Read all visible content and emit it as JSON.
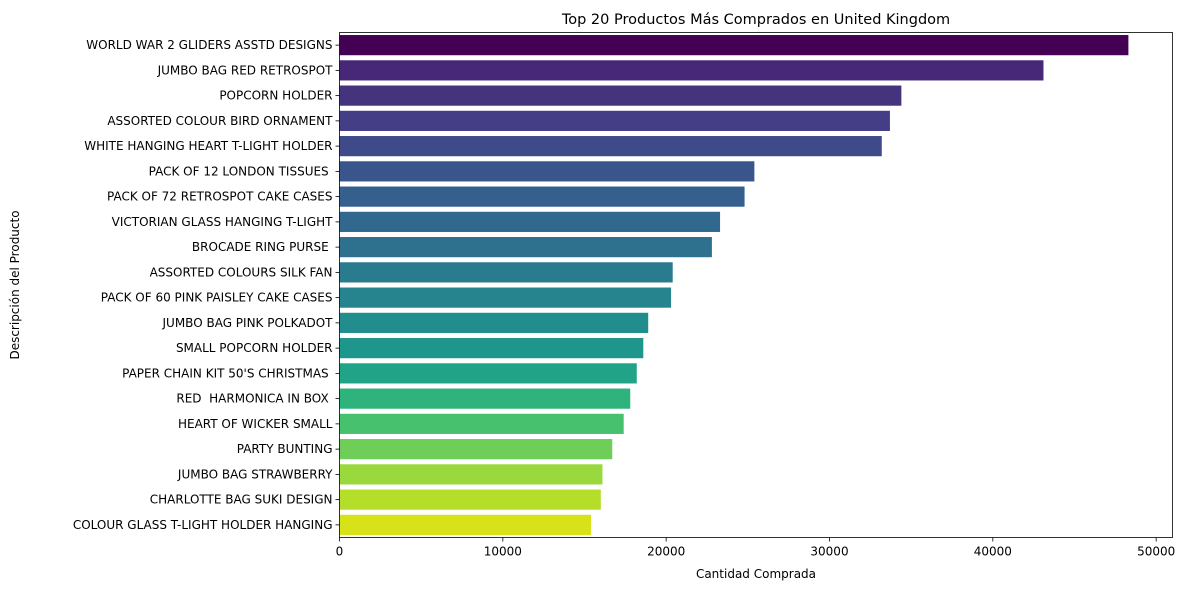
{
  "chart_data": {
    "type": "bar",
    "orientation": "horizontal",
    "title": "Top 20 Productos Más Comprados en United Kingdom",
    "xlabel": "Cantidad Comprada",
    "ylabel": "Descripción del Producto",
    "xlim": [
      0,
      51000
    ],
    "xticks": [
      0,
      10000,
      20000,
      30000,
      40000,
      50000
    ],
    "grid": false,
    "palette": "viridis",
    "categories": [
      "WORLD WAR 2 GLIDERS ASSTD DESIGNS",
      "JUMBO BAG RED RETROSPOT",
      "POPCORN HOLDER",
      "ASSORTED COLOUR BIRD ORNAMENT",
      "WHITE HANGING HEART T-LIGHT HOLDER",
      "PACK OF 12 LONDON TISSUES ",
      "PACK OF 72 RETROSPOT CAKE CASES",
      "VICTORIAN GLASS HANGING T-LIGHT",
      "BROCADE RING PURSE ",
      "ASSORTED COLOURS SILK FAN",
      "PACK OF 60 PINK PAISLEY CAKE CASES",
      "JUMBO BAG PINK POLKADOT",
      "SMALL POPCORN HOLDER",
      "PAPER CHAIN KIT 50'S CHRISTMAS ",
      "RED  HARMONICA IN BOX ",
      "HEART OF WICKER SMALL",
      "PARTY BUNTING",
      "JUMBO BAG STRAWBERRY",
      "CHARLOTTE BAG SUKI DESIGN",
      "COLOUR GLASS T-LIGHT HOLDER HANGING"
    ],
    "values": [
      48300,
      43100,
      34400,
      33700,
      33200,
      25400,
      24800,
      23300,
      22800,
      20400,
      20300,
      18900,
      18600,
      18200,
      17800,
      17400,
      16700,
      16100,
      16000,
      15400
    ],
    "colors": [
      "#440154",
      "#472777",
      "#46337e",
      "#433e85",
      "#3e4a89",
      "#3a548c",
      "#355f8d",
      "#31688e",
      "#2d718e",
      "#297b8e",
      "#25848e",
      "#218e8d",
      "#1f968b",
      "#20a386",
      "#2eb37c",
      "#48c16e",
      "#6ece58",
      "#9ad93d",
      "#b5de2b",
      "#d8e219"
    ]
  }
}
